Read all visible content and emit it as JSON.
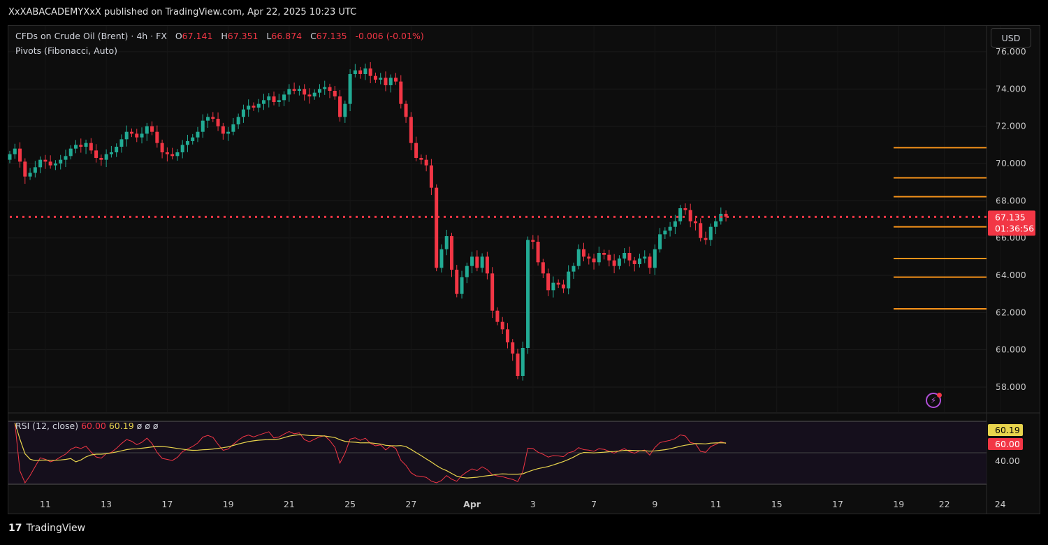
{
  "header": {
    "published": "XxXABACADEMYXxX published on TradingView.com, Apr 22, 2025 10:23 UTC"
  },
  "legend": {
    "symbol": "CFDs on Crude Oil (Brent) · 4h · FX",
    "o_label": "O",
    "o_value": "67.141",
    "h_label": "H",
    "h_value": "67.351",
    "l_label": "L",
    "l_value": "66.874",
    "c_label": "C",
    "c_value": "67.135",
    "change": "-0.006 (-0.01%)",
    "indicator": "Pivots (Fibonacci, Auto)"
  },
  "currency": "USD",
  "rsi": {
    "title": "RSI (12, close)",
    "value": "60.00",
    "ma": "60.19",
    "extras": "ø  ø  ø",
    "tag_ma": "60.19",
    "tag_value": "60.00",
    "tick": "40.00"
  },
  "footer": {
    "brand": "TradingView",
    "logo": "17"
  },
  "colors": {
    "up": "#22ab94",
    "down": "#f23645",
    "pivot": "#f7931a",
    "rsi_line": "#f23645",
    "rsi_ma": "#e8d44d"
  },
  "icons": {
    "alert": "flash-icon"
  },
  "chart_data": {
    "type": "candlestick",
    "symbol": "CFDs on Crude Oil (Brent)",
    "timeframe": "4h",
    "ylim": [
      56.6,
      76.6
    ],
    "yticks": [
      "76.000",
      "74.000",
      "72.000",
      "70.000",
      "68.000",
      "66.000",
      "64.000",
      "62.000",
      "60.000",
      "58.000"
    ],
    "x_ticks": [
      {
        "label": "11",
        "i": 7
      },
      {
        "label": "13",
        "i": 19
      },
      {
        "label": "17",
        "i": 31
      },
      {
        "label": "19",
        "i": 43
      },
      {
        "label": "21",
        "i": 55
      },
      {
        "label": "25",
        "i": 67
      },
      {
        "label": "27",
        "i": 79
      },
      {
        "label": "Apr",
        "i": 91
      },
      {
        "label": "3",
        "i": 103
      },
      {
        "label": "7",
        "i": 115
      },
      {
        "label": "9",
        "i": 127
      },
      {
        "label": "11",
        "i": 139
      },
      {
        "label": "15",
        "i": 151
      },
      {
        "label": "17",
        "i": 163
      },
      {
        "label": "19",
        "i": 175
      },
      {
        "label": "22",
        "i": 184
      },
      {
        "label": "24",
        "i": 195
      }
    ],
    "last_price": "67.135",
    "countdown": "01:36:56",
    "pivot_levels": [
      70.85,
      69.23,
      68.22,
      66.6,
      64.9,
      63.9,
      62.2
    ],
    "closes": [
      70.5,
      70.8,
      70.1,
      69.3,
      69.5,
      69.8,
      70.2,
      70.1,
      69.9,
      70.0,
      70.2,
      70.4,
      70.8,
      71.0,
      70.9,
      71.1,
      70.7,
      70.3,
      70.2,
      70.5,
      70.6,
      70.9,
      71.3,
      71.7,
      71.6,
      71.4,
      71.6,
      72.0,
      71.7,
      71.1,
      70.6,
      70.5,
      70.4,
      70.6,
      71.0,
      71.2,
      71.4,
      71.7,
      72.3,
      72.5,
      72.4,
      72.0,
      71.6,
      71.7,
      72.1,
      72.5,
      72.9,
      73.1,
      73.0,
      73.2,
      73.4,
      73.6,
      73.3,
      73.4,
      73.7,
      74.0,
      73.9,
      74.0,
      73.7,
      73.6,
      73.8,
      74.0,
      74.1,
      73.9,
      73.6,
      72.5,
      73.2,
      74.8,
      75.0,
      74.8,
      75.1,
      74.7,
      74.5,
      74.6,
      74.2,
      74.6,
      74.4,
      73.2,
      72.5,
      71.1,
      70.3,
      70.2,
      69.9,
      68.7,
      64.4,
      65.4,
      66.1,
      64.3,
      63.0,
      63.9,
      64.5,
      65.0,
      64.4,
      65.0,
      64.1,
      62.1,
      61.5,
      61.1,
      60.4,
      59.8,
      58.6,
      60.1,
      65.9,
      65.8,
      64.7,
      64.1,
      63.2,
      63.6,
      63.5,
      63.3,
      64.2,
      64.5,
      65.4,
      65.0,
      64.9,
      64.7,
      65.2,
      65.1,
      64.8,
      64.5,
      64.9,
      65.2,
      64.8,
      64.6,
      64.9,
      65.0,
      64.4,
      65.4,
      66.2,
      66.4,
      66.6,
      66.9,
      67.6,
      67.5,
      66.9,
      66.8,
      66.0,
      65.9,
      66.6,
      66.9,
      67.3,
      67.14
    ]
  }
}
